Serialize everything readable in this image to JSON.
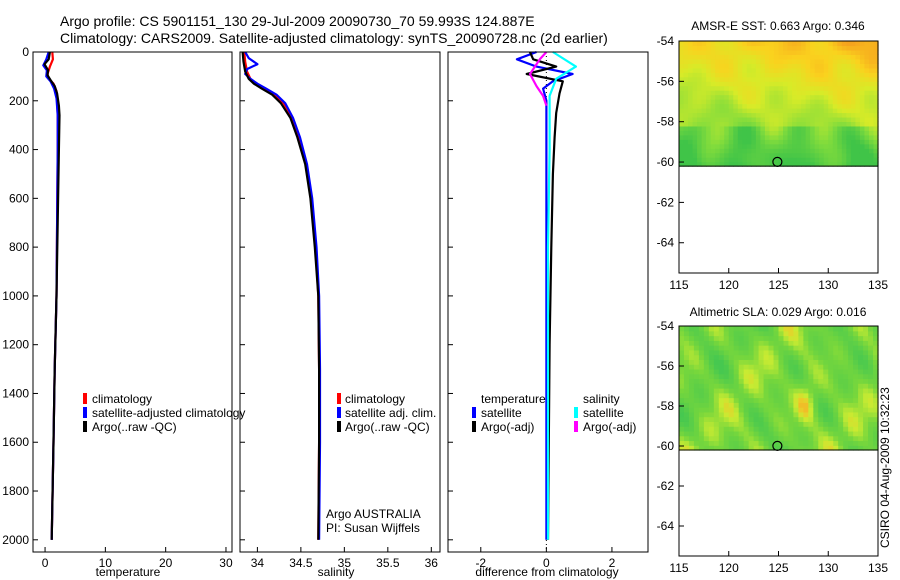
{
  "header": {
    "line1": "Argo profile: CS 5901151_130 29-Jul-2009 20090730_70 59.993S 124.887E",
    "line2": "Climatology: CARS2009. Satellite-adjusted climatology: synTS_20090728.nc (2d earlier)"
  },
  "watermark": "CSIRO 04-Aug-2009 10:32:23",
  "colors": {
    "climatology": "#ff0000",
    "satellite": "#0000ff",
    "argo": "#000000",
    "sal_satellite": "#00ffff",
    "sal_argo": "#ff00ff"
  },
  "chart_data": [
    {
      "id": "temperature",
      "type": "line",
      "xlabel": "temperature",
      "xlim": [
        -2,
        31
      ],
      "xticks": [
        0,
        10,
        20,
        30
      ],
      "ylim": [
        2050,
        0
      ],
      "yticks": [
        0,
        200,
        400,
        600,
        800,
        1000,
        1200,
        1400,
        1600,
        1800,
        2000
      ],
      "legend": [
        "climatology",
        "satellite-adjusted climatology",
        "Argo(..raw -QC)"
      ],
      "series": [
        {
          "name": "climatology",
          "color": "#ff0000",
          "points": [
            [
              1.2,
              0
            ],
            [
              1.3,
              30
            ],
            [
              0.8,
              60
            ],
            [
              0.4,
              90
            ],
            [
              0.6,
              110
            ],
            [
              1.4,
              130
            ],
            [
              1.9,
              160
            ],
            [
              2.0,
              200
            ],
            [
              2.1,
              260
            ],
            [
              2.1,
              400
            ],
            [
              2.0,
              700
            ],
            [
              1.9,
              1000
            ],
            [
              1.6,
              1300
            ],
            [
              1.4,
              1600
            ],
            [
              1.1,
              2000
            ]
          ]
        },
        {
          "name": "satellite-adjusted climatology",
          "color": "#0000ff",
          "points": [
            [
              0.6,
              0
            ],
            [
              0.2,
              30
            ],
            [
              -0.3,
              55
            ],
            [
              0.3,
              75
            ],
            [
              0.2,
              100
            ],
            [
              0.9,
              120
            ],
            [
              1.5,
              150
            ],
            [
              1.9,
              190
            ],
            [
              2.1,
              260
            ],
            [
              2.1,
              400
            ],
            [
              2.0,
              700
            ],
            [
              1.9,
              1000
            ],
            [
              1.6,
              1300
            ],
            [
              1.4,
              1600
            ],
            [
              1.1,
              2000
            ]
          ]
        },
        {
          "name": "Argo(..raw -QC)",
          "color": "#000000",
          "points": [
            [
              0.8,
              0
            ],
            [
              0.6,
              30
            ],
            [
              -0.1,
              50
            ],
            [
              0.5,
              75
            ],
            [
              0.4,
              95
            ],
            [
              0.9,
              115
            ],
            [
              1.6,
              140
            ],
            [
              2.0,
              170
            ],
            [
              2.3,
              220
            ],
            [
              2.4,
              260
            ],
            [
              2.3,
              400
            ],
            [
              2.1,
              700
            ],
            [
              1.9,
              1000
            ],
            [
              1.6,
              1300
            ],
            [
              1.4,
              1600
            ],
            [
              1.1,
              2000
            ]
          ]
        }
      ]
    },
    {
      "id": "salinity",
      "type": "line",
      "xlabel": "salinity",
      "xlim": [
        33.8,
        36.1
      ],
      "xticks": [
        34,
        34.5,
        35,
        35.5,
        36
      ],
      "ylim": [
        2050,
        0
      ],
      "yticks": [
        0,
        200,
        400,
        600,
        800,
        1000,
        1200,
        1400,
        1600,
        1800,
        2000
      ],
      "legend": [
        "climatology",
        "satellite adj. clim.",
        "Argo(..raw -QC)"
      ],
      "annotation": [
        "Argo AUSTRALIA",
        "PI: Susan Wijffels"
      ],
      "series": [
        {
          "name": "climatology",
          "color": "#ff0000",
          "points": [
            [
              33.85,
              0
            ],
            [
              33.86,
              40
            ],
            [
              33.88,
              80
            ],
            [
              33.92,
              110
            ],
            [
              33.98,
              130
            ],
            [
              34.08,
              150
            ],
            [
              34.2,
              175
            ],
            [
              34.3,
              210
            ],
            [
              34.4,
              270
            ],
            [
              34.48,
              350
            ],
            [
              34.56,
              460
            ],
            [
              34.62,
              600
            ],
            [
              34.67,
              800
            ],
            [
              34.7,
              1000
            ],
            [
              34.71,
              1300
            ],
            [
              34.71,
              1600
            ],
            [
              34.7,
              2000
            ]
          ]
        },
        {
          "name": "satellite adj. clim.",
          "color": "#0000ff",
          "points": [
            [
              33.86,
              0
            ],
            [
              33.9,
              25
            ],
            [
              34.0,
              50
            ],
            [
              33.88,
              70
            ],
            [
              33.86,
              90
            ],
            [
              33.92,
              110
            ],
            [
              34.0,
              130
            ],
            [
              34.1,
              150
            ],
            [
              34.22,
              175
            ],
            [
              34.32,
              210
            ],
            [
              34.41,
              270
            ],
            [
              34.49,
              350
            ],
            [
              34.57,
              460
            ],
            [
              34.63,
              600
            ],
            [
              34.68,
              800
            ],
            [
              34.71,
              1000
            ],
            [
              34.72,
              1300
            ],
            [
              34.72,
              1600
            ],
            [
              34.71,
              2000
            ]
          ]
        },
        {
          "name": "Argo(..raw -QC)",
          "color": "#000000",
          "points": [
            [
              33.83,
              0
            ],
            [
              33.84,
              40
            ],
            [
              33.86,
              80
            ],
            [
              33.9,
              110
            ],
            [
              33.96,
              130
            ],
            [
              34.05,
              150
            ],
            [
              34.17,
              175
            ],
            [
              34.27,
              210
            ],
            [
              34.38,
              270
            ],
            [
              34.46,
              350
            ],
            [
              34.55,
              460
            ],
            [
              34.61,
              600
            ],
            [
              34.66,
              800
            ],
            [
              34.7,
              1000
            ],
            [
              34.71,
              1300
            ],
            [
              34.71,
              1600
            ],
            [
              34.7,
              2000
            ]
          ]
        }
      ]
    },
    {
      "id": "difference",
      "type": "line",
      "xlabel": "difference from climatology",
      "xlim": [
        -3,
        3.1
      ],
      "xticks": [
        -2,
        0,
        2
      ],
      "ylim": [
        2050,
        0
      ],
      "yticks": [
        0,
        200,
        400,
        600,
        800,
        1000,
        1200,
        1400,
        1600,
        1800,
        2000
      ],
      "legend_groups": [
        {
          "title": "temperature",
          "items": [
            "satellite",
            "Argo(-adj)"
          ]
        },
        {
          "title": "salinity",
          "items": [
            "satellite",
            "Argo(-adj)"
          ]
        }
      ],
      "series": [
        {
          "name": "temperature satellite",
          "color": "#0000ff",
          "points": [
            [
              -0.3,
              0
            ],
            [
              -0.9,
              30
            ],
            [
              -0.3,
              60
            ],
            [
              0.8,
              90
            ],
            [
              0.2,
              120
            ],
            [
              -0.1,
              150
            ],
            [
              0,
              200
            ],
            [
              0,
              400
            ],
            [
              0,
              1000
            ],
            [
              0,
              2000
            ]
          ]
        },
        {
          "name": "temperature Argo(-adj)",
          "color": "#000000",
          "points": [
            [
              -0.5,
              0
            ],
            [
              -0.4,
              30
            ],
            [
              0.3,
              60
            ],
            [
              -0.6,
              90
            ],
            [
              0.5,
              120
            ],
            [
              0.4,
              170
            ],
            [
              0.3,
              250
            ],
            [
              0.25,
              350
            ],
            [
              0.2,
              500
            ],
            [
              0.15,
              800
            ],
            [
              0.1,
              1200
            ],
            [
              0.05,
              2000
            ]
          ]
        },
        {
          "name": "salinity satellite",
          "color": "#00ffff",
          "points": [
            [
              0.2,
              0
            ],
            [
              0.9,
              60
            ],
            [
              0.3,
              110
            ],
            [
              0.1,
              180
            ],
            [
              0.1,
              400
            ],
            [
              0.05,
              800
            ],
            [
              0.05,
              2000
            ]
          ]
        },
        {
          "name": "salinity Argo(-adj)",
          "color": "#ff00ff",
          "points": [
            [
              0,
              0
            ],
            [
              -0.2,
              30
            ],
            [
              -0.5,
              90
            ],
            [
              -0.3,
              140
            ],
            [
              -0.1,
              180
            ],
            [
              0,
              220
            ]
          ]
        }
      ]
    },
    {
      "id": "sst_map",
      "type": "heatmap",
      "title": "AMSR-E SST: 0.663 Argo: 0.346",
      "xlim": [
        115,
        135
      ],
      "ylim": [
        -65.5,
        -54
      ],
      "xticks": [
        115,
        120,
        125,
        130,
        135
      ],
      "yticks": [
        -54,
        -56,
        -58,
        -60,
        -62,
        -64
      ],
      "data_lat_range": [
        -60.2,
        -54
      ],
      "marker": {
        "lon": 124.887,
        "lat": -59.993
      }
    },
    {
      "id": "sla_map",
      "type": "heatmap",
      "title": "Altimetric SLA: 0.029 Argo: 0.016",
      "xlim": [
        115,
        135
      ],
      "ylim": [
        -65.5,
        -54
      ],
      "xticks": [
        115,
        120,
        125,
        130,
        135
      ],
      "yticks": [
        -54,
        -56,
        -58,
        -60,
        -62,
        -64
      ],
      "data_lat_range": [
        -60.2,
        -54
      ],
      "marker": {
        "lon": 124.887,
        "lat": -59.993
      }
    }
  ]
}
